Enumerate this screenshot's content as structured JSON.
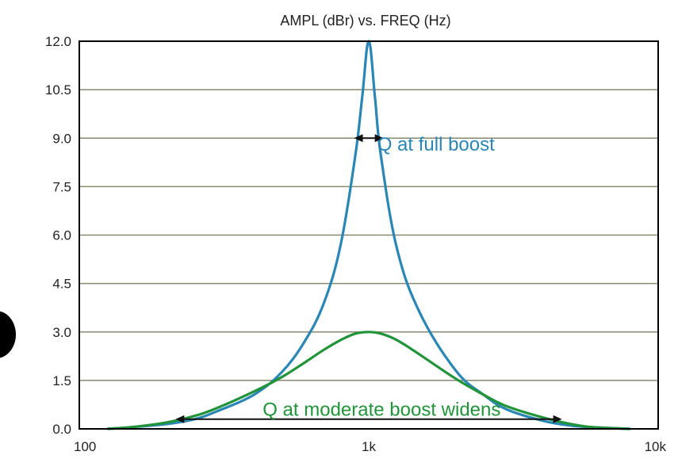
{
  "chart_data": {
    "type": "line",
    "title": "AMPL (dBr) vs. FREQ (Hz)",
    "x_scale": "log",
    "xlim": [
      100,
      10000
    ],
    "ylim": [
      0,
      12
    ],
    "x_ticks": [
      100,
      1000,
      10000
    ],
    "x_tick_labels": [
      "100",
      "1k",
      "10k"
    ],
    "y_ticks": [
      0,
      1.5,
      3,
      4.5,
      6,
      7.5,
      9,
      10.5,
      12
    ],
    "y_tick_labels": [
      "0.0",
      "1.5",
      "3.0",
      "4.5",
      "6.0",
      "7.5",
      "9.0",
      "10.5",
      "12.0"
    ],
    "grid": "horizontal",
    "series": [
      {
        "color": "#2a86b5",
        "x": [
          125,
          150,
          200,
          250,
          300,
          400,
          500,
          600,
          700,
          800,
          900,
          950,
          1000,
          1050,
          1100,
          1250,
          1500,
          2000,
          2500,
          3000,
          4000,
          5000,
          6000,
          8000
        ],
        "y": [
          0.0,
          0.05,
          0.15,
          0.3,
          0.55,
          1.05,
          1.75,
          2.7,
          3.9,
          5.7,
          8.5,
          10.3,
          12.0,
          10.3,
          8.5,
          5.6,
          3.6,
          1.8,
          1.05,
          0.6,
          0.25,
          0.1,
          0.05,
          0.0
        ]
      },
      {
        "color": "#21943a",
        "x": [
          125,
          150,
          200,
          250,
          300,
          400,
          500,
          600,
          700,
          800,
          900,
          1000,
          1100,
          1250,
          1500,
          2000,
          2500,
          3000,
          4000,
          5000,
          6000,
          8000
        ],
        "y": [
          0.0,
          0.05,
          0.2,
          0.4,
          0.65,
          1.15,
          1.6,
          2.05,
          2.45,
          2.75,
          2.95,
          3.0,
          2.95,
          2.75,
          2.3,
          1.55,
          1.05,
          0.7,
          0.35,
          0.15,
          0.05,
          0.0
        ]
      }
    ],
    "annotations": [
      {
        "text": "Q at full boost",
        "color": "#2a86b5",
        "x": 1070,
        "y": 9.05,
        "arrow_x": [
          890,
          1125
        ],
        "arrow_y": 9.0
      },
      {
        "text": "Q at moderate boost widens",
        "color": "#21943a",
        "x": 430,
        "y": 0.85,
        "arrow_x": [
          215,
          4650
        ],
        "arrow_y": 0.3
      }
    ]
  }
}
